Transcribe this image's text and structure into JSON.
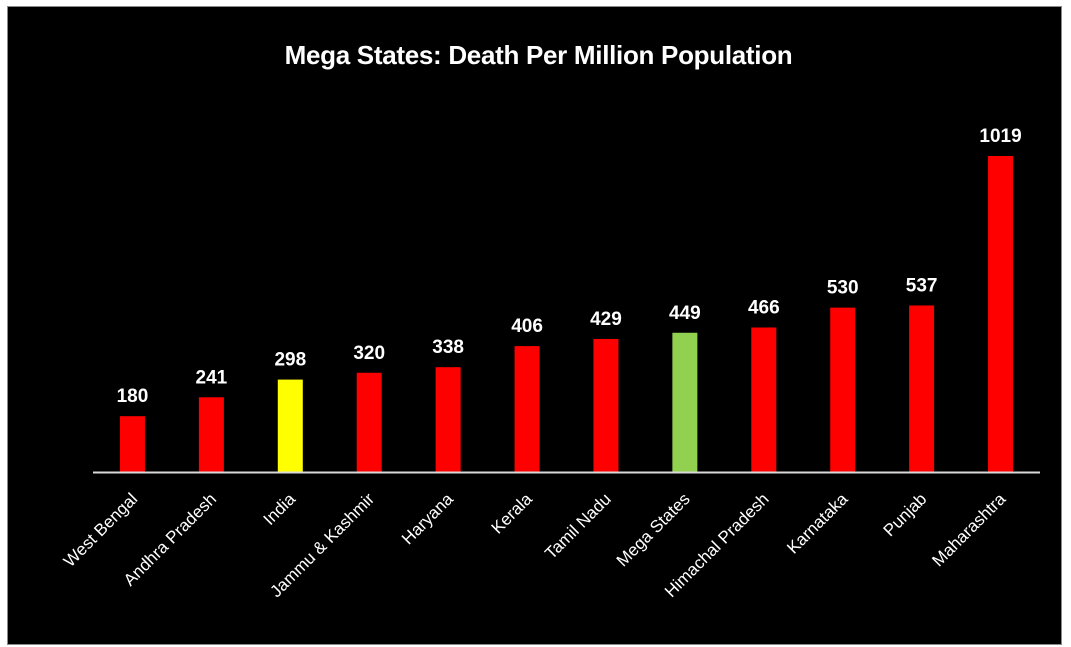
{
  "chart_data": {
    "type": "bar",
    "title": "Mega States: Death Per Million Population",
    "categories": [
      "West Bengal",
      "Andhra Pradesh",
      "India",
      "Jammu & Kashmir",
      "Haryana",
      "Kerala",
      "Tamil Nadu",
      "Mega States",
      "Himachal Pradesh",
      "Karnataka",
      "Punjab",
      "Maharashtra"
    ],
    "values": [
      180,
      241,
      298,
      320,
      338,
      406,
      429,
      449,
      466,
      530,
      537,
      1019
    ],
    "bar_colors": [
      "#ff0000",
      "#ff0000",
      "#ffff00",
      "#ff0000",
      "#ff0000",
      "#ff0000",
      "#ff0000",
      "#92d050",
      "#ff0000",
      "#ff0000",
      "#ff0000",
      "#ff0000"
    ],
    "xlabel": "",
    "ylabel": "",
    "ylim": [
      0,
      1019
    ],
    "grid": false,
    "data_labels": true,
    "background": "#000000",
    "text_color": "#ffffff",
    "axis_color": "#d9d9d9"
  }
}
